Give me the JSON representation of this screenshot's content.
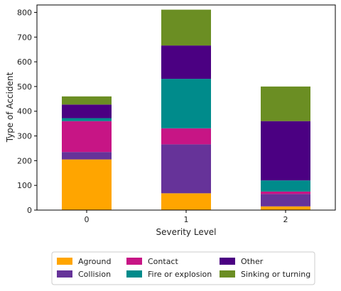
{
  "chart_data": {
    "type": "bar",
    "stacked": true,
    "title": "",
    "xlabel": "Severity Level",
    "ylabel": "Type of Accident",
    "categories": [
      "0",
      "1",
      "2"
    ],
    "ylim": [
      0,
      830
    ],
    "yticks": [
      0,
      100,
      200,
      300,
      400,
      500,
      600,
      700,
      800
    ],
    "grid": false,
    "legend_position": "bottom-center",
    "series": [
      {
        "name": "Aground",
        "color": "#FFA500",
        "values": [
          205,
          68,
          15
        ]
      },
      {
        "name": "Collision",
        "color": "#663399",
        "values": [
          30,
          198,
          50
        ]
      },
      {
        "name": "Contact",
        "color": "#C71585",
        "values": [
          125,
          65,
          10
        ]
      },
      {
        "name": "Fire or explosion",
        "color": "#008B8B",
        "values": [
          12,
          200,
          45
        ]
      },
      {
        "name": "Other",
        "color": "#4B0082",
        "values": [
          55,
          135,
          240
        ]
      },
      {
        "name": "Sinking or turning",
        "color": "#6B8E23",
        "values": [
          33,
          145,
          140
        ]
      }
    ]
  }
}
